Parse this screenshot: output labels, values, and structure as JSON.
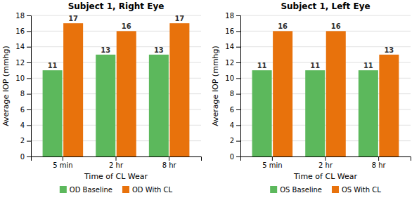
{
  "chart_data": [
    {
      "type": "bar",
      "title": "Subject 1, Right Eye",
      "xlabel": "Time of CL Wear",
      "ylabel": "Average IOP (mmhg)",
      "categories": [
        "5 min",
        "2 hr",
        "8 hr"
      ],
      "series": [
        {
          "name": "OD Baseline",
          "color": "#5cb85c",
          "values": [
            11,
            13,
            13
          ]
        },
        {
          "name": "OD With CL",
          "color": "#e8720c",
          "values": [
            17,
            16,
            17
          ]
        }
      ],
      "ylim": [
        0,
        18
      ],
      "yticks": [
        0,
        2,
        4,
        6,
        8,
        10,
        12,
        14,
        16,
        18
      ],
      "grid": true,
      "data_labels": true,
      "legend": "bottom"
    },
    {
      "type": "bar",
      "title": "Subject 1, Left Eye",
      "xlabel": "Time of CL Wear",
      "ylabel": "Average IOP (mmhg)",
      "categories": [
        "5 min",
        "2 hr",
        "8 hr"
      ],
      "series": [
        {
          "name": "OS Baseline",
          "color": "#5cb85c",
          "values": [
            11,
            11,
            11
          ]
        },
        {
          "name": "OS With CL",
          "color": "#e8720c",
          "values": [
            16,
            16,
            13
          ]
        }
      ],
      "ylim": [
        0,
        18
      ],
      "yticks": [
        0,
        2,
        4,
        6,
        8,
        10,
        12,
        14,
        16,
        18
      ],
      "grid": true,
      "data_labels": true,
      "legend": "bottom"
    }
  ]
}
